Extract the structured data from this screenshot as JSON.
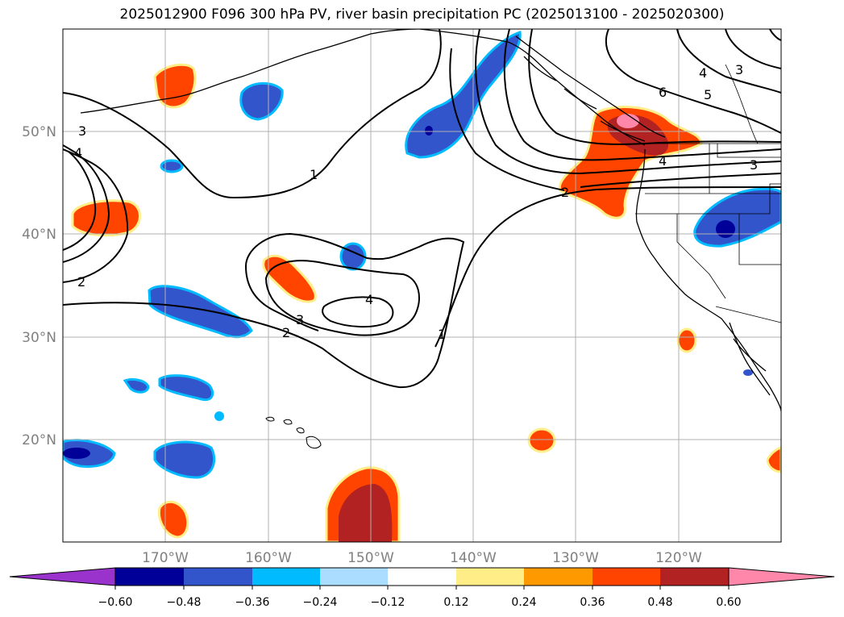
{
  "title": "2025012900 F096 300 hPa PV, river basin precipitation PC (2025013100 - 2025020300)",
  "lat_labels": [
    "50°N",
    "40°N",
    "30°N",
    "20°N"
  ],
  "lon_labels": [
    "170°W",
    "160°W",
    "150°W",
    "140°W",
    "130°W",
    "120°W"
  ],
  "pv_contour_labels": [
    "1",
    "1",
    "2",
    "2",
    "2",
    "3",
    "3",
    "3",
    "3",
    "4",
    "4",
    "4",
    "4",
    "5",
    "6"
  ],
  "colorbar": {
    "tick_labels": [
      "−0.60",
      "−0.48",
      "−0.36",
      "−0.24",
      "−0.12",
      "0.12",
      "0.24",
      "0.36",
      "0.48",
      "0.60"
    ],
    "colors": [
      "#9933cc",
      "#000099",
      "#3355cc",
      "#00bbff",
      "#aaddff",
      "#ffffff",
      "#ffee88",
      "#ff9900",
      "#ff4400",
      "#b22222",
      "#ff88aa"
    ]
  },
  "legend_colors": {
    "negative_strong": "#000099",
    "negative_mid": "#3355cc",
    "negative_light": "#00bbff",
    "positive_light": "#ffee88",
    "positive_mid": "#ff4400",
    "positive_strong": "#b22222",
    "positive_max": "#ff88aa"
  }
}
